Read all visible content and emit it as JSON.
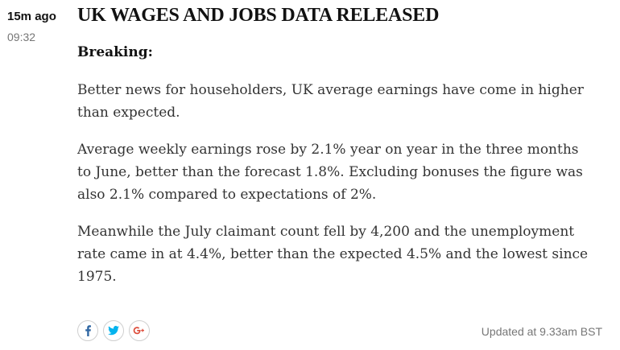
{
  "entry": {
    "time_ago": "15m ago",
    "timestamp": "09:32",
    "headline": "UK WAGES AND JOBS DATA RELEASED",
    "lead_label": "Breaking:",
    "paragraphs": [
      "Better news for householders, UK average earnings have come in higher than expected.",
      "Average weekly earnings rose by 2.1% year on year in the three months to June, better than the forecast 1.8%. Excluding bonuses the figure was also 2.1% compared to expectations of 2%.",
      "Meanwhile the July claimant count fell by 4,200 and the unemployment rate came in at 4.4%, better than the expected 4.5% and the lowest since 1975."
    ],
    "updated": "Updated at 9.33am BST"
  },
  "share": {
    "buttons": [
      {
        "icon": "facebook-icon",
        "color": "#3067a3"
      },
      {
        "icon": "twitter-icon",
        "color": "#03b3ee"
      },
      {
        "icon": "google-plus-icon",
        "color": "#dd4b39"
      }
    ]
  }
}
